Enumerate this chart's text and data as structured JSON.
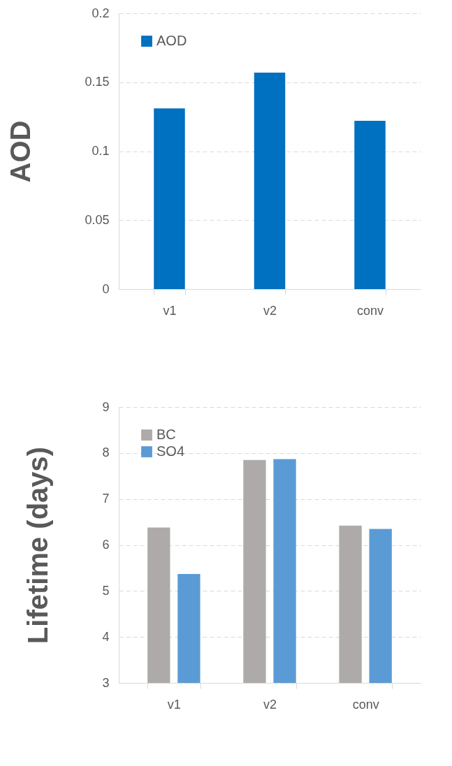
{
  "chart_data": [
    {
      "type": "bar",
      "ylabel": "AOD",
      "categories": [
        "v1",
        "v2",
        "conv"
      ],
      "series": [
        {
          "name": "AOD",
          "color": "#0070c0",
          "values": [
            0.131,
            0.157,
            0.122
          ]
        }
      ],
      "ylim": [
        0,
        0.2
      ],
      "yticks": [
        {
          "value": 0,
          "label": "0"
        },
        0.05,
        {
          "value": 0.1,
          "label": "0.1"
        },
        0.15,
        {
          "value": 0.2,
          "label": "0.2"
        }
      ],
      "grid": "y",
      "legend": "top left"
    },
    {
      "type": "bar",
      "ylabel": "Lifetime (days)",
      "categories": [
        "v1",
        "v2",
        "conv"
      ],
      "series": [
        {
          "name": "BC",
          "color": "#aeaaaa",
          "values": [
            6.38,
            7.85,
            6.42
          ]
        },
        {
          "name": "SO4",
          "color": "#5b9bd5",
          "values": [
            5.37,
            7.87,
            6.35
          ]
        }
      ],
      "ylim": [
        3,
        9
      ],
      "yticks": [
        3,
        4,
        5,
        6,
        7,
        8,
        9
      ],
      "grid": "y",
      "legend": "top left"
    }
  ]
}
